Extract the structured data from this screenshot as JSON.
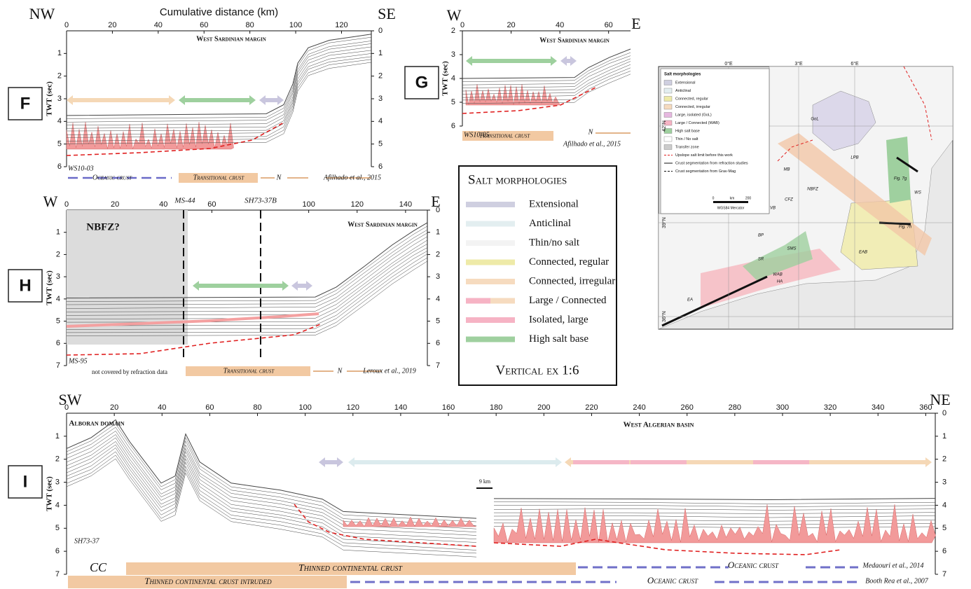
{
  "panels": [
    {
      "letter": "F",
      "left": "NW",
      "right": "SE",
      "x_title": "Cumulative distance (km)",
      "y_title": "TWT (sec)",
      "xticks": [
        0,
        20,
        40,
        60,
        80,
        100,
        120
      ],
      "yticks_left": [
        1,
        2,
        3,
        4,
        5,
        6
      ],
      "yticks_right": [
        0,
        1,
        2,
        3,
        4,
        5,
        6
      ],
      "labels": [
        "West Sardinian margin",
        "WS10-03",
        "Oceanic crust",
        "Transitional crust",
        "N",
        "Afilhado et al., 2015"
      ]
    },
    {
      "letter": "G",
      "left": "W",
      "right": "E",
      "y_title": "TWT (sec)",
      "xticks": [
        0,
        20,
        40,
        60
      ],
      "yticks_left": [
        2,
        3,
        4,
        5,
        6
      ],
      "yticks_right": [],
      "labels": [
        "West Sardinian margin",
        "WS10-05",
        "Transitional crust",
        "N",
        "Afilhado et al., 2015"
      ]
    },
    {
      "letter": "H",
      "left": "W",
      "right": "E",
      "y_title": "TWT (sec)",
      "xticks": [
        0,
        20,
        40,
        60,
        100,
        120,
        140
      ],
      "yticks_left": [
        1,
        2,
        3,
        4,
        5,
        6,
        7
      ],
      "yticks_right": [
        0,
        1,
        2,
        3,
        4,
        5,
        6,
        7
      ],
      "labels": [
        "NBFZ?",
        "MS-44",
        "SH73-37B",
        "West Sardinian margin",
        "MS-95",
        "not covered by refraction data",
        "Transitional crust",
        "N",
        "Leroux et al., 2019"
      ]
    },
    {
      "letter": "I",
      "left": "SW",
      "right": "NE",
      "y_title": "TWT (sec)",
      "xticks": [
        0,
        20,
        40,
        60,
        80,
        100,
        120,
        140,
        160,
        180,
        200,
        220,
        240,
        260,
        280,
        300,
        320,
        340,
        360
      ],
      "yticks_left": [
        1,
        2,
        3,
        4,
        5,
        6,
        7
      ],
      "yticks_right": [
        0,
        1,
        2,
        3,
        4,
        5,
        6,
        7
      ],
      "labels": [
        "Alboran domain",
        "West Algerian basin",
        "9 km",
        "SH73-37",
        "CC",
        "Thinned continental crust",
        "Oceanic crust",
        "Medaouri et al., 2014",
        "Thinned continental crust intruded",
        "Oceanic crust",
        "Booth Rea et al., 2007"
      ]
    }
  ],
  "legend": {
    "title": "Salt morphologies",
    "items": [
      "Extensional",
      "Anticlinal",
      "Thin/no salt",
      "Connected, regular",
      "Connected, irregular",
      "Large / Connected",
      "Isolated, large",
      "High salt base"
    ],
    "note": "Vertical ex 1:6"
  },
  "map": {
    "legend_title": "Salt morphologies",
    "legend_items": [
      "Extensional",
      "Anticlinal",
      "Connected, regular",
      "Connected, irregular",
      "Large, isolated (GoL)",
      "Large / Connected (WAB)",
      "High salt base",
      "Thin / No salt",
      "Transfer zone",
      "Upslope salt limit before this work",
      "Crust segmentation from refraction studies",
      "Crust segmentation from Grav-Mag"
    ],
    "scale": [
      "0",
      "km",
      "200"
    ],
    "projection": "WGS84 Mercator",
    "grid_labels": [
      "0°E",
      "3°E",
      "6°E",
      "42°N",
      "39°N",
      "36°N"
    ],
    "places": [
      "GoL",
      "LPB",
      "EAB",
      "WAB",
      "NBFZ",
      "MB",
      "CFZ",
      "VB",
      "BP",
      "SR",
      "SMS",
      "HA",
      "EA",
      "WS",
      "Fig. 7g",
      "Fig. 7h"
    ]
  }
}
